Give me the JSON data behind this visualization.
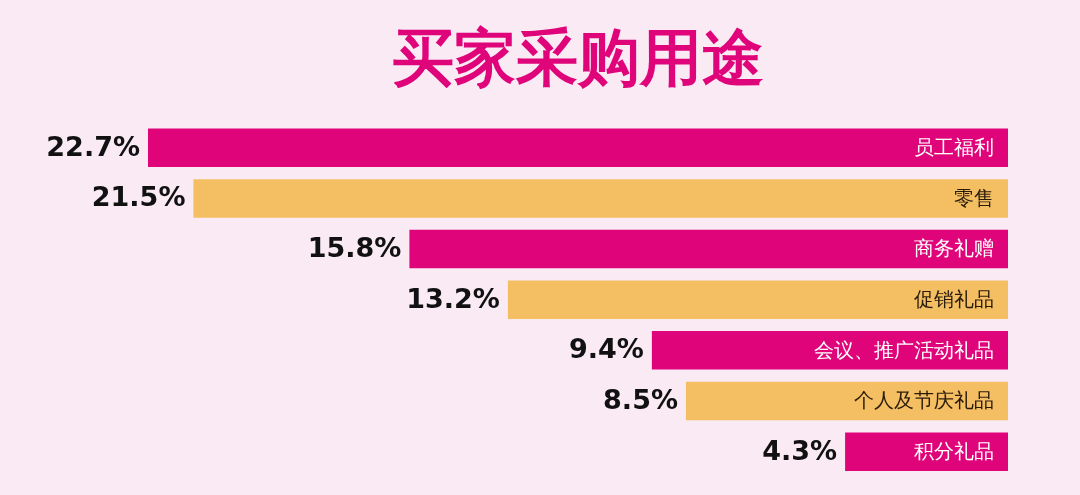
{
  "chart_data": {
    "type": "bar",
    "orientation": "horizontal",
    "title": "买家采购用途",
    "categories": [
      "员工福利",
      "零售",
      "商务礼赠",
      "促销礼品",
      "会议、推广活动礼品",
      "个人及节庆礼品",
      "积分礼品"
    ],
    "values": [
      22.7,
      21.5,
      15.8,
      13.2,
      9.4,
      8.5,
      4.3
    ],
    "colors": [
      "#e0047a",
      "#f3bf62",
      "#e0047a",
      "#f3bf62",
      "#e0047a",
      "#f3bf62",
      "#e0047a"
    ],
    "value_labels": [
      "22.7%",
      "21.5%",
      "15.8%",
      "13.2%",
      "9.4%",
      "8.5%",
      "4.3%"
    ]
  }
}
